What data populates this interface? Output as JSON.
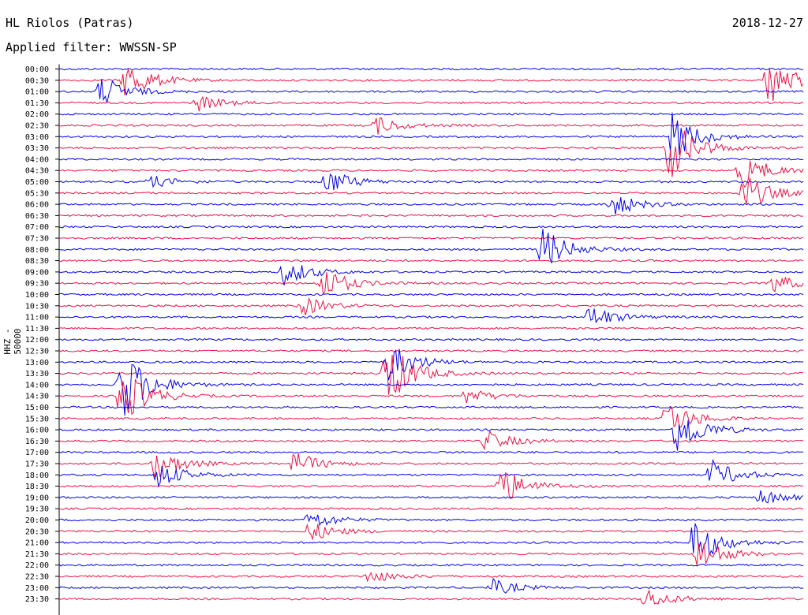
{
  "header": {
    "station": "HL Riolos (Patras)",
    "date": "2018-12-27",
    "filter": "Applied filter: WWSSN-SP"
  },
  "chart_data": {
    "type": "line",
    "title": "HL Riolos (Patras)",
    "subtitle": "Applied filter: WWSSN-SP",
    "date": "2018-12-27",
    "ylabel": "HHZ - 50000",
    "row_labels": [
      "00:00",
      "00:30",
      "01:00",
      "01:30",
      "02:00",
      "02:30",
      "03:00",
      "03:30",
      "04:00",
      "04:30",
      "05:00",
      "05:30",
      "06:00",
      "06:30",
      "07:00",
      "07:30",
      "08:00",
      "08:30",
      "09:00",
      "09:30",
      "10:00",
      "10:30",
      "11:00",
      "11:30",
      "12:00",
      "12:30",
      "13:00",
      "13:30",
      "14:00",
      "14:30",
      "15:00",
      "15:30",
      "16:00",
      "16:30",
      "17:00",
      "17:30",
      "18:00",
      "18:30",
      "19:00",
      "19:30",
      "20:00",
      "20:30",
      "21:00",
      "21:30",
      "22:00",
      "22:30",
      "23:00",
      "23:30"
    ],
    "colors": [
      "#0000ee",
      "#ee1144"
    ],
    "grid": false,
    "x_unit": "minutes within 30-min row",
    "xlim": [
      0,
      30
    ],
    "events": [
      {
        "row": 1,
        "t": 2.7,
        "amp": 2.0
      },
      {
        "row": 2,
        "t": 1.7,
        "amp": 1.6
      },
      {
        "row": 3,
        "t": 5.6,
        "amp": 0.8
      },
      {
        "row": 5,
        "t": 12.8,
        "amp": 0.9
      },
      {
        "row": 1,
        "t": 28.6,
        "amp": 2.5
      },
      {
        "row": 9,
        "t": 27.5,
        "amp": 1.8
      },
      {
        "row": 10,
        "t": 10.8,
        "amp": 1.3
      },
      {
        "row": 10,
        "t": 3.7,
        "amp": 0.6
      },
      {
        "row": 11,
        "t": 27.6,
        "amp": 2.0
      },
      {
        "row": 12,
        "t": 22.3,
        "amp": 1.2
      },
      {
        "row": 7,
        "t": 24.6,
        "amp": 3.2
      },
      {
        "row": 6,
        "t": 24.7,
        "amp": 2.5
      },
      {
        "row": 16,
        "t": 19.5,
        "amp": 2.2
      },
      {
        "row": 18,
        "t": 9.1,
        "amp": 1.4
      },
      {
        "row": 19,
        "t": 10.6,
        "amp": 1.7
      },
      {
        "row": 21,
        "t": 9.8,
        "amp": 1.0
      },
      {
        "row": 22,
        "t": 21.4,
        "amp": 1.2
      },
      {
        "row": 19,
        "t": 28.8,
        "amp": 0.9
      },
      {
        "row": 27,
        "t": 13.2,
        "amp": 3.5
      },
      {
        "row": 26,
        "t": 13.3,
        "amp": 2.0
      },
      {
        "row": 28,
        "t": 2.5,
        "amp": 4.0
      },
      {
        "row": 29,
        "t": 2.5,
        "amp": 3.0
      },
      {
        "row": 29,
        "t": 16.4,
        "amp": 0.8
      },
      {
        "row": 31,
        "t": 24.5,
        "amp": 1.9
      },
      {
        "row": 32,
        "t": 24.9,
        "amp": 2.6
      },
      {
        "row": 33,
        "t": 17.2,
        "amp": 1.1
      },
      {
        "row": 35,
        "t": 3.9,
        "amp": 1.6
      },
      {
        "row": 35,
        "t": 9.5,
        "amp": 1.2
      },
      {
        "row": 36,
        "t": 4.0,
        "amp": 1.3
      },
      {
        "row": 37,
        "t": 17.8,
        "amp": 2.0
      },
      {
        "row": 36,
        "t": 26.3,
        "amp": 1.5
      },
      {
        "row": 38,
        "t": 28.3,
        "amp": 0.8
      },
      {
        "row": 40,
        "t": 10.1,
        "amp": 1.0
      },
      {
        "row": 41,
        "t": 10.1,
        "amp": 1.0
      },
      {
        "row": 42,
        "t": 25.6,
        "amp": 2.4
      },
      {
        "row": 43,
        "t": 25.8,
        "amp": 1.7
      },
      {
        "row": 45,
        "t": 12.5,
        "amp": 0.7
      },
      {
        "row": 46,
        "t": 17.5,
        "amp": 0.8
      },
      {
        "row": 47,
        "t": 23.6,
        "amp": 1.1
      }
    ]
  }
}
